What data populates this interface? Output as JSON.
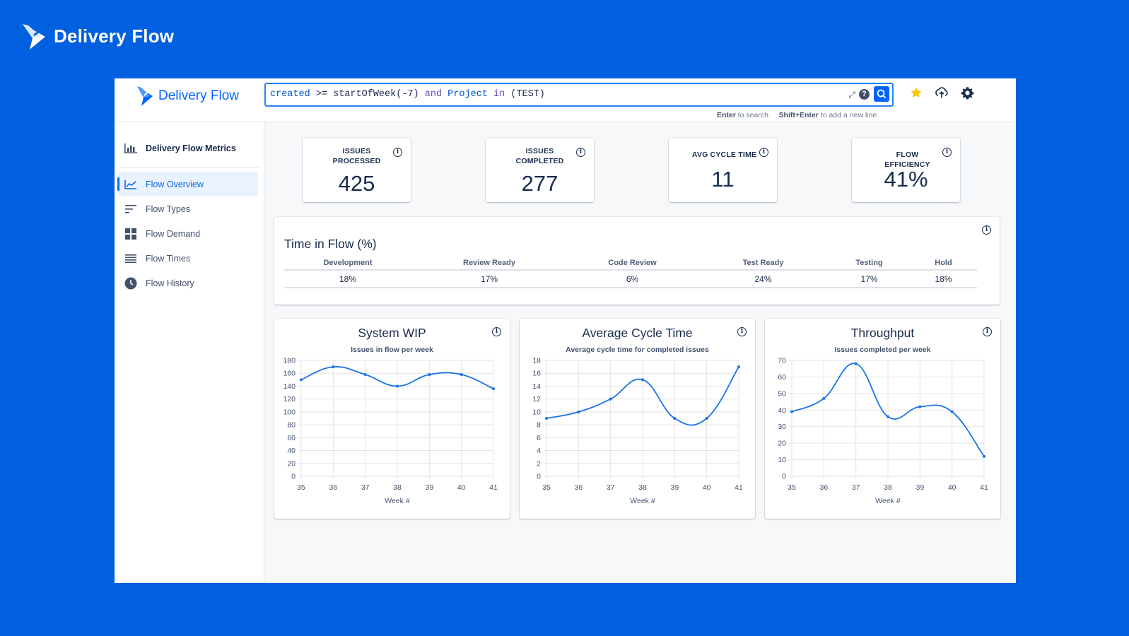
{
  "brand": {
    "name": "Delivery Flow"
  },
  "app": {
    "brand_name": "Delivery Flow",
    "search": {
      "query_parts": [
        "created",
        " >= ",
        "startOfWeek(-7)",
        " and ",
        "Project",
        " in ",
        "(TEST)"
      ],
      "hint_enter": "Enter",
      "hint_enter_text": " to search",
      "hint_shift": "Shift+Enter",
      "hint_shift_text": " to add a new line",
      "help_glyph": "?"
    },
    "top_icons": [
      "star-icon",
      "cloud-upload-icon",
      "gear-icon"
    ],
    "colors": {
      "accent": "#0065ff",
      "star": "#ffc400",
      "background": "#0160df"
    }
  },
  "sidebar": {
    "header": "Delivery Flow Metrics",
    "items": [
      {
        "label": "Flow Overview",
        "icon": "line-chart-icon",
        "active": true
      },
      {
        "label": "Flow Types",
        "icon": "sort-lines-icon",
        "active": false
      },
      {
        "label": "Flow Demand",
        "icon": "grid-icon",
        "active": false
      },
      {
        "label": "Flow Times",
        "icon": "list-icon",
        "active": false
      },
      {
        "label": "Flow History",
        "icon": "clock-icon",
        "active": false
      }
    ]
  },
  "kpis": [
    {
      "label": "ISSUES PROCESSED",
      "value": "425"
    },
    {
      "label": "ISSUES COMPLETED",
      "value": "277"
    },
    {
      "label": "AVG CYCLE TIME",
      "value": "11"
    },
    {
      "label": "FLOW EFFICIENCY",
      "value": "41%"
    }
  ],
  "time_in_flow": {
    "title": "Time in Flow (%)",
    "columns": [
      "Development",
      "Review Ready",
      "Code Review",
      "Test Ready",
      "Testing",
      "Hold"
    ],
    "values": [
      "18%",
      "17%",
      "6%",
      "24%",
      "17%",
      "18%"
    ]
  },
  "chart_data": [
    {
      "type": "line",
      "title": "System WIP",
      "subtitle": "Issues in flow per week",
      "xlabel": "Week #",
      "ylabel": "",
      "x": [
        35,
        36,
        37,
        38,
        39,
        40,
        41
      ],
      "ylim": [
        0,
        180
      ],
      "yticks": [
        0,
        20,
        40,
        60,
        80,
        100,
        120,
        140,
        160,
        180
      ],
      "series": [
        {
          "values": [
            150,
            170,
            158,
            140,
            158,
            158,
            136
          ]
        }
      ],
      "grid": true,
      "color": "#1a73e8"
    },
    {
      "type": "line",
      "title": "Average Cycle Time",
      "subtitle": "Average cycle time for completed issues",
      "xlabel": "Week #",
      "ylabel": "",
      "x": [
        35,
        36,
        37,
        38,
        39,
        40,
        41
      ],
      "ylim": [
        0,
        18
      ],
      "yticks": [
        0,
        2,
        4,
        6,
        8,
        10,
        12,
        14,
        16,
        18
      ],
      "series": [
        {
          "values": [
            9,
            10,
            12,
            15,
            9,
            9,
            17
          ]
        }
      ],
      "grid": true,
      "color": "#1a73e8"
    },
    {
      "type": "line",
      "title": "Throughput",
      "subtitle": "Issues completed per week",
      "xlabel": "Week #",
      "ylabel": "",
      "x": [
        35,
        36,
        37,
        38,
        39,
        40,
        41
      ],
      "ylim": [
        0,
        70
      ],
      "yticks": [
        0,
        10,
        20,
        30,
        40,
        50,
        60,
        70
      ],
      "series": [
        {
          "values": [
            39,
            47,
            68,
            36,
            42,
            39,
            12
          ]
        }
      ],
      "grid": true,
      "color": "#1a73e8"
    }
  ]
}
